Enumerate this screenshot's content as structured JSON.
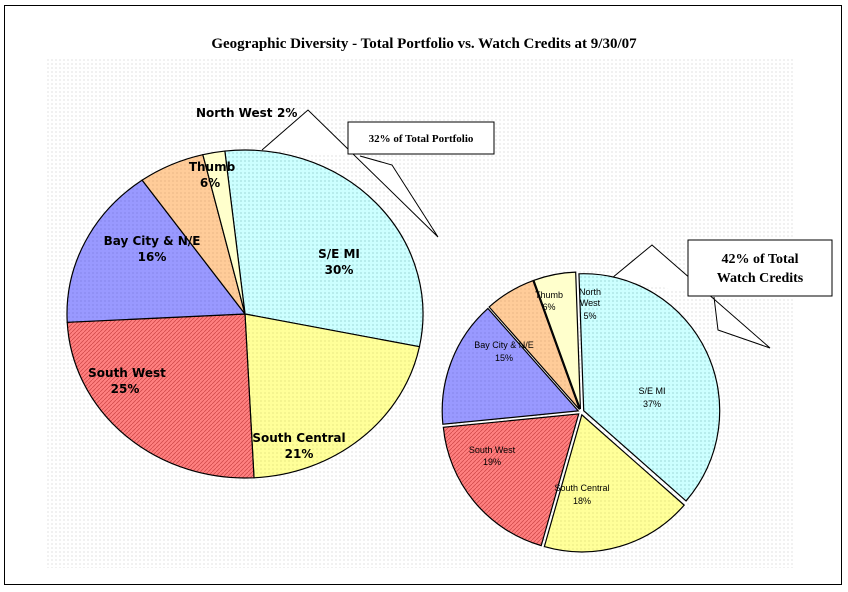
{
  "title": "Geographic Diversity -  Total Portfolio vs. Watch Credits at 9/30/07",
  "chart_data": [
    {
      "type": "pie",
      "callout": "32% of Total Portfolio",
      "slices": [
        {
          "label": "S/E MI",
          "value": 30,
          "text": "30%",
          "color": "#ccffff"
        },
        {
          "label": "South Central",
          "value": 21,
          "text": "21%",
          "color": "#ffff99"
        },
        {
          "label": "South West",
          "value": 25,
          "text": "25%",
          "color": "#ff8080"
        },
        {
          "label": "Bay City & N/E",
          "value": 16,
          "text": "16%",
          "color": "#9999ff"
        },
        {
          "label": "Thumb",
          "value": 6,
          "text": "6%",
          "color": "#ffcc99"
        },
        {
          "label": "North West",
          "value": 2,
          "text": "2%",
          "color": "#ffffcc"
        }
      ]
    },
    {
      "type": "pie",
      "callout_lines": [
        "42% of Total",
        "Watch Credits"
      ],
      "slices": [
        {
          "label": "S/E MI",
          "value": 37,
          "text": "37%",
          "color": "#ccffff"
        },
        {
          "label": "South Central",
          "value": 18,
          "text": "18%",
          "color": "#ffff99"
        },
        {
          "label": "South West",
          "value": 19,
          "text": "19%",
          "color": "#ff8080"
        },
        {
          "label": "Bay City & N/E",
          "value": 15,
          "text": "15%",
          "color": "#9999ff"
        },
        {
          "label": "Thumb",
          "value": 6,
          "text": "6%",
          "color": "#ffcc99"
        },
        {
          "label": "North",
          "label2": "West",
          "value": 5,
          "text": "5%",
          "color": "#ffffcc"
        }
      ]
    }
  ]
}
